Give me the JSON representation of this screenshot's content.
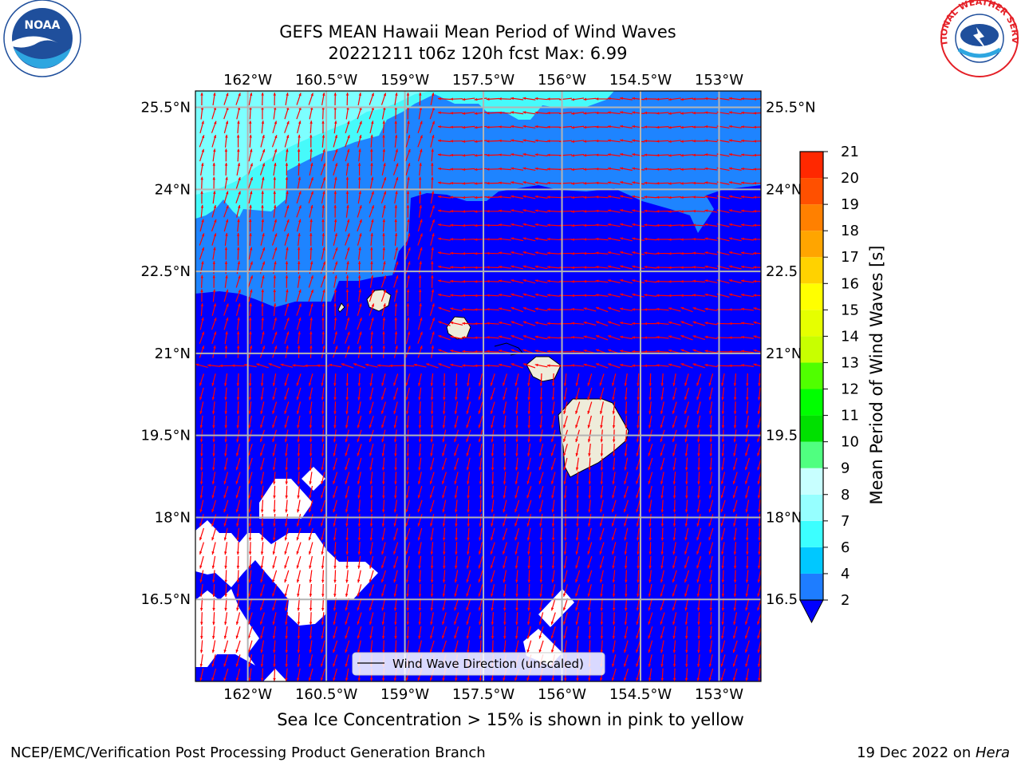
{
  "header": {
    "title_line1": "GEFS MEAN Hawaii Mean Period of Wind Waves",
    "title_line2": "20221211 t06z 120h fcst   Max: 6.99"
  },
  "logos": {
    "left": {
      "name": "NOAA",
      "ring_text": "NATIONAL OCEANIC AND ATMOSPHERIC ADMINISTRATION · U.S. DEPARTMENT OF COMMERCE",
      "color": "#1f4f9c"
    },
    "right": {
      "name": "NATIONAL WEATHER SERVICE",
      "color": "#e41f26"
    }
  },
  "map": {
    "lon_labels": [
      "162°W",
      "160.5°W",
      "159°W",
      "157.5°W",
      "156°W",
      "154.5°W",
      "153°W"
    ],
    "lon_values": [
      -162,
      -160.5,
      -159,
      -157.5,
      -156,
      -154.5,
      -153
    ],
    "lat_labels": [
      "25.5°N",
      "24°N",
      "22.5°N",
      "21°N",
      "19.5°N",
      "18°N",
      "16.5°N"
    ],
    "lat_values": [
      25.5,
      24,
      22.5,
      21,
      19.5,
      18,
      16.5
    ],
    "right_lat_labels": [
      "25.5°N",
      "24°N",
      "22.5",
      "21°N",
      "19.5",
      "18°N",
      "16.5"
    ],
    "lon_range": [
      -163,
      -152.2
    ],
    "lat_range": [
      15.0,
      25.8
    ],
    "legend_label": "Wind Wave Direction (unscaled)",
    "arrow_color": "#ff0000",
    "ocean_colors": {
      "lt2": "#0000ff",
      "2_4": "#1e84ff",
      "4_6": "#46fafa",
      "6_7": "#7dffff"
    },
    "land_color": "#eeecda"
  },
  "colorbar": {
    "label": "Mean Period of Wind Waves [s]",
    "ticks": [
      "2",
      "4",
      "6",
      "7",
      "8",
      "9",
      "10",
      "11",
      "12",
      "13",
      "14",
      "15",
      "16",
      "17",
      "18",
      "19",
      "20",
      "21"
    ],
    "colors": [
      "#1e7dff",
      "#00c8ff",
      "#3cffff",
      "#96ffff",
      "#c8ffff",
      "#50ff80",
      "#00e000",
      "#00ff00",
      "#50ff00",
      "#c8ff00",
      "#e6ff00",
      "#ffff00",
      "#ffd200",
      "#ffa500",
      "#ff8000",
      "#ff5000",
      "#ff2800",
      "#ff0000"
    ],
    "extend_color": "#0000ff"
  },
  "caption": "Sea Ice Concentration > 15% is shown in pink to yellow",
  "footer": {
    "left": "NCEP/EMC/Verification Post Processing Product Generation Branch",
    "right_prefix": "19 Dec 2022 on ",
    "right_machine": "Hera"
  }
}
